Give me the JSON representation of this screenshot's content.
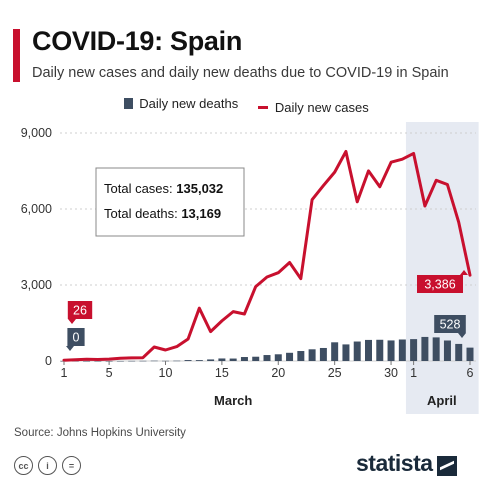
{
  "header": {
    "title": "COVID-19: Spain",
    "subtitle": "Daily new cases and daily new deaths due to COVID-19 in Spain"
  },
  "legend": {
    "deaths_label": "Daily new deaths",
    "cases_label": "Daily new cases"
  },
  "annotation": {
    "cases_prefix": "Total cases:",
    "cases_value": "135,032",
    "deaths_prefix": "Total deaths:",
    "deaths_value": "13,169"
  },
  "footer": {
    "source": "Source: Johns Hopkins University",
    "brand": "statista",
    "cc_icons": [
      "cc-icon",
      "by-icon",
      "nd-icon"
    ]
  },
  "colors": {
    "accent": "#c8102e",
    "cases_line": "#c8102e",
    "deaths_bar": "#3e4e62",
    "highlight_band": "#e6eaf2",
    "grid": "#cfcfcf",
    "brand": "#1a2a3a"
  },
  "chart_data": {
    "type": "bar",
    "title": "COVID-19: Spain",
    "subtitle": "Daily new cases and daily new deaths due to COVID-19 in Spain",
    "xlabel": "",
    "ylabel": "",
    "ylim": [
      0,
      9000
    ],
    "yticks": [
      "0",
      "3,000",
      "6,000",
      "9,000"
    ],
    "grid": true,
    "legend_position": "top-center",
    "x": [
      "Mar 1",
      "Mar 2",
      "Mar 3",
      "Mar 4",
      "Mar 5",
      "Mar 6",
      "Mar 7",
      "Mar 8",
      "Mar 9",
      "Mar 10",
      "Mar 11",
      "Mar 12",
      "Mar 13",
      "Mar 14",
      "Mar 15",
      "Mar 16",
      "Mar 17",
      "Mar 18",
      "Mar 19",
      "Mar 20",
      "Mar 21",
      "Mar 22",
      "Mar 23",
      "Mar 24",
      "Mar 25",
      "Mar 26",
      "Mar 27",
      "Mar 28",
      "Mar 29",
      "Mar 30",
      "Mar 31",
      "Apr 1",
      "Apr 2",
      "Apr 3",
      "Apr 4",
      "Apr 5",
      "Apr 6"
    ],
    "x_tick_labels": [
      {
        "index": 0,
        "label": "1"
      },
      {
        "index": 4,
        "label": "5"
      },
      {
        "index": 9,
        "label": "10"
      },
      {
        "index": 14,
        "label": "15"
      },
      {
        "index": 19,
        "label": "20"
      },
      {
        "index": 24,
        "label": "25"
      },
      {
        "index": 29,
        "label": "30"
      },
      {
        "index": 31,
        "label": "1"
      },
      {
        "index": 36,
        "label": "6"
      }
    ],
    "month_labels": [
      {
        "label": "March",
        "start": 0,
        "end": 30
      },
      {
        "label": "April",
        "start": 31,
        "end": 36
      }
    ],
    "highlight_range": [
      31,
      36
    ],
    "series": [
      {
        "name": "Daily new deaths",
        "type": "bar",
        "values": [
          0,
          0,
          0,
          1,
          1,
          2,
          5,
          7,
          12,
          8,
          12,
          37,
          35,
          62,
          100,
          97,
          157,
          169,
          235,
          265,
          324,
          394,
          462,
          514,
          738,
          655,
          769,
          832,
          838,
          812,
          849,
          864,
          950,
          932,
          809,
          674,
          528
        ]
      },
      {
        "name": "Daily new cases",
        "type": "line",
        "values": [
          26,
          46,
          67,
          58,
          76,
          111,
          124,
          129,
          554,
          435,
          569,
          867,
          2086,
          1159,
          1581,
          1950,
          1855,
          2935,
          3314,
          3485,
          3890,
          3249,
          6368,
          6922,
          7457,
          8271,
          6284,
          7502,
          6875,
          7846,
          7967,
          8195,
          6119,
          7134,
          6969,
          5478,
          3386
        ]
      }
    ],
    "data_labels": [
      {
        "series": "Daily new cases",
        "index": 0,
        "text": "26"
      },
      {
        "series": "Daily new deaths",
        "index": 0,
        "text": "0"
      },
      {
        "series": "Daily new cases",
        "index": 36,
        "text": "3,386"
      },
      {
        "series": "Daily new deaths",
        "index": 36,
        "text": "528"
      }
    ]
  }
}
